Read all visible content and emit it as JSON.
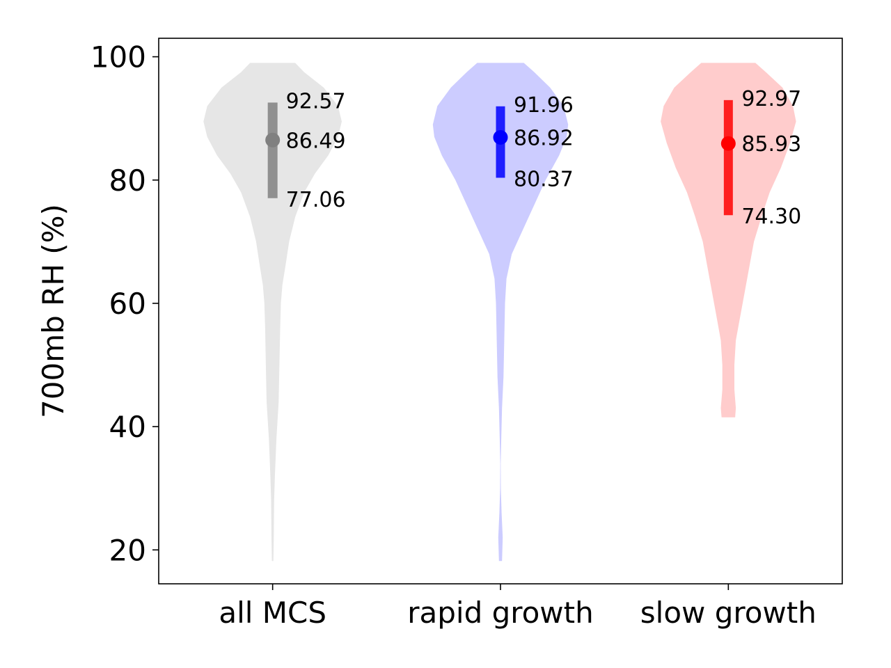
{
  "chart_data": {
    "type": "violin",
    "title": "",
    "xlabel": "",
    "ylabel": "700mb RH (%)",
    "ylim": [
      14.5,
      103
    ],
    "yticks": [
      20,
      40,
      60,
      80,
      100
    ],
    "categories": [
      "all MCS",
      "rapid growth",
      "slow growth"
    ],
    "series": [
      {
        "name": "all MCS",
        "color": "#808080",
        "fill": "#e6e6e6",
        "median": 86.49,
        "q1": 77.06,
        "q3": 92.57,
        "labels": {
          "q3": "92.57",
          "median": "86.49",
          "q1": "77.06"
        },
        "min": 18.2,
        "max": 99.0,
        "density": [
          [
            18.2,
            0.01
          ],
          [
            22,
            0.015
          ],
          [
            28,
            0.02
          ],
          [
            32,
            0.03
          ],
          [
            38,
            0.05
          ],
          [
            44,
            0.08
          ],
          [
            50,
            0.09
          ],
          [
            56,
            0.1
          ],
          [
            60,
            0.11
          ],
          [
            63,
            0.13
          ],
          [
            66,
            0.17
          ],
          [
            70,
            0.22
          ],
          [
            74,
            0.3
          ],
          [
            78,
            0.42
          ],
          [
            81,
            0.56
          ],
          [
            84,
            0.74
          ],
          [
            87,
            0.87
          ],
          [
            89.5,
            0.92
          ],
          [
            92,
            0.87
          ],
          [
            95,
            0.68
          ],
          [
            97.5,
            0.42
          ],
          [
            99,
            0.3
          ]
        ]
      },
      {
        "name": "rapid growth",
        "color": "#0000ff",
        "fill": "#ccccff",
        "median": 86.92,
        "q1": 80.37,
        "q3": 91.96,
        "labels": {
          "q3": "91.96",
          "median": "86.92",
          "q1": "80.37"
        },
        "min": 18.2,
        "max": 99.0,
        "density": [
          [
            18.2,
            0.02
          ],
          [
            22,
            0.03
          ],
          [
            26,
            0.015
          ],
          [
            30,
            0.005
          ],
          [
            34,
            0.003
          ],
          [
            38,
            0.01
          ],
          [
            43,
            0.02
          ],
          [
            48,
            0.04
          ],
          [
            54,
            0.05
          ],
          [
            60,
            0.06
          ],
          [
            64,
            0.08
          ],
          [
            68,
            0.15
          ],
          [
            72,
            0.3
          ],
          [
            76,
            0.45
          ],
          [
            80,
            0.6
          ],
          [
            84,
            0.78
          ],
          [
            87,
            0.88
          ],
          [
            89,
            0.9
          ],
          [
            92,
            0.84
          ],
          [
            95,
            0.66
          ],
          [
            97.5,
            0.45
          ],
          [
            99,
            0.31
          ]
        ]
      },
      {
        "name": "slow growth",
        "color": "#ff0000",
        "fill": "#ffcccc",
        "median": 85.93,
        "q1": 74.3,
        "q3": 92.97,
        "labels": {
          "q3": "92.97",
          "median": "85.93",
          "q1": "74.30"
        },
        "min": 41.5,
        "max": 99.0,
        "density": [
          [
            41.5,
            0.09
          ],
          [
            43,
            0.1
          ],
          [
            46,
            0.08
          ],
          [
            50,
            0.08
          ],
          [
            54,
            0.1
          ],
          [
            58,
            0.16
          ],
          [
            62,
            0.22
          ],
          [
            66,
            0.28
          ],
          [
            70,
            0.34
          ],
          [
            74,
            0.44
          ],
          [
            78,
            0.55
          ],
          [
            82,
            0.7
          ],
          [
            86,
            0.82
          ],
          [
            89.5,
            0.9
          ],
          [
            92,
            0.86
          ],
          [
            95,
            0.72
          ],
          [
            97.5,
            0.5
          ],
          [
            99,
            0.36
          ]
        ]
      }
    ],
    "grid": false,
    "legend": "none"
  }
}
